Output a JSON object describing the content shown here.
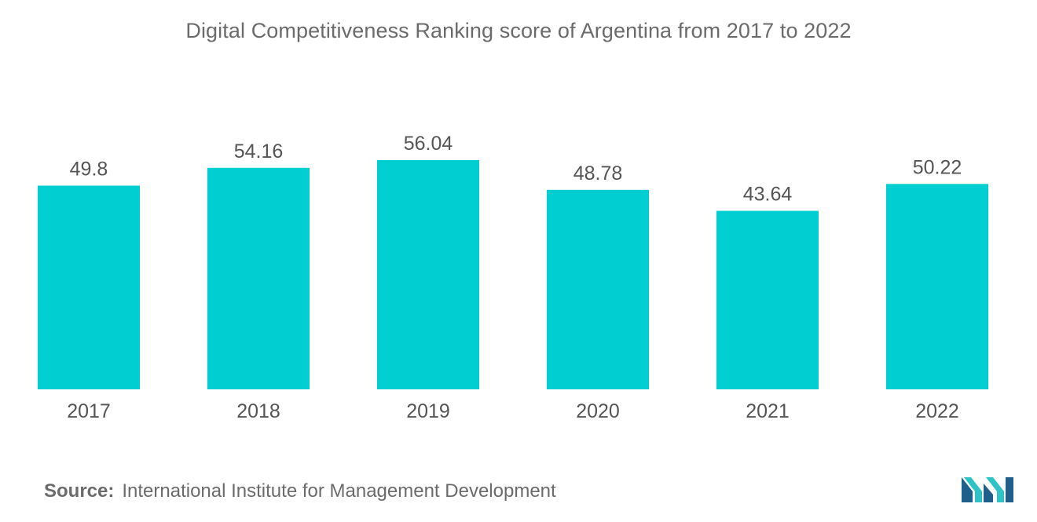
{
  "colors": {
    "bar": "#00ced1",
    "text": "#555555",
    "title": "#6b6b6b",
    "logo_dark": "#1f5f8b",
    "logo_light": "#2ec4c6"
  },
  "source": {
    "label": "Source:",
    "text": "International Institute for Management Development"
  },
  "logo": {
    "icon": "mordor-intelligence-logo-icon"
  },
  "chart_data": {
    "type": "bar",
    "title": "Digital Competitiveness Ranking score of Argentina from 2017 to 2022",
    "xlabel": "",
    "ylabel": "",
    "categories": [
      "2017",
      "2018",
      "2019",
      "2020",
      "2021",
      "2022"
    ],
    "values": [
      49.8,
      54.16,
      56.04,
      48.78,
      43.64,
      50.22
    ],
    "value_labels": [
      "49.8",
      "54.16",
      "56.04",
      "48.78",
      "43.64",
      "50.22"
    ],
    "ylim": [
      0,
      56.04
    ],
    "grid": false,
    "legend": "none"
  }
}
